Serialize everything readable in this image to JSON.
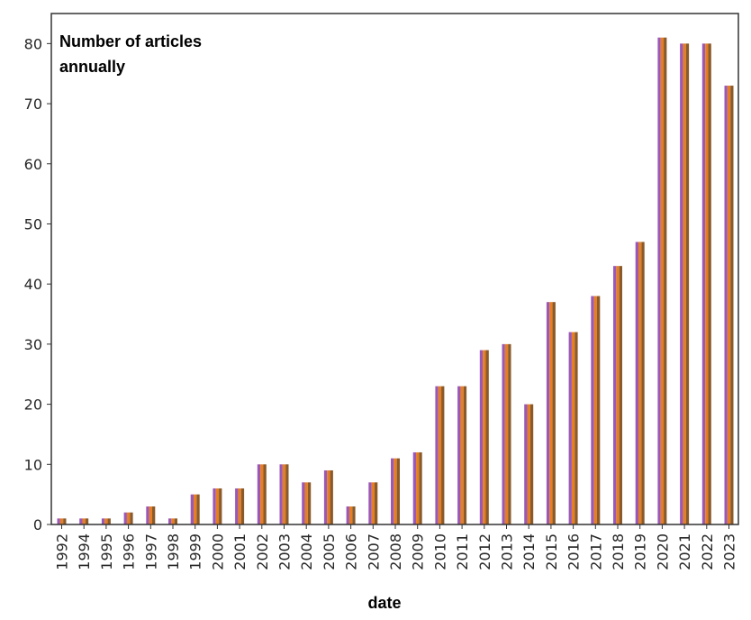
{
  "chart_data": {
    "type": "bar",
    "title": "Number of articles annually",
    "title_lines": [
      "Number of articles",
      "annually"
    ],
    "xlabel": "date",
    "ylabel": "",
    "categories": [
      "1992",
      "1994",
      "1995",
      "1996",
      "1997",
      "1998",
      "1999",
      "2000",
      "2001",
      "2002",
      "2003",
      "2004",
      "2005",
      "2006",
      "2007",
      "2008",
      "2009",
      "2010",
      "2011",
      "2012",
      "2013",
      "2014",
      "2015",
      "2016",
      "2017",
      "2018",
      "2019",
      "2020",
      "2021",
      "2022",
      "2023"
    ],
    "values": [
      1,
      1,
      1,
      2,
      3,
      1,
      5,
      6,
      6,
      10,
      10,
      7,
      9,
      3,
      7,
      11,
      12,
      23,
      23,
      29,
      30,
      20,
      37,
      32,
      38,
      43,
      47,
      81,
      80,
      80,
      73
    ],
    "ylim": [
      0,
      85
    ],
    "yticks": [
      0,
      10,
      20,
      30,
      40,
      50,
      60,
      70,
      80
    ],
    "bar_colors": [
      "#9b59b6",
      "#e67e22",
      "#8b5a2b"
    ],
    "grid": false,
    "legend": "none"
  }
}
